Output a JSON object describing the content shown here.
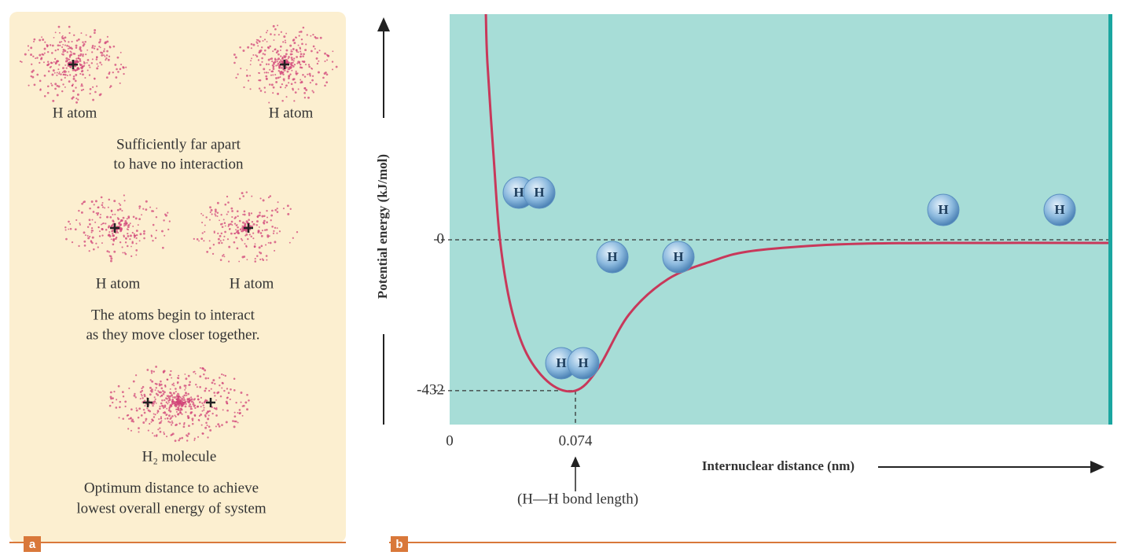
{
  "panel_a": {
    "label": "a",
    "atom_label": "H atom",
    "molecule_label": "H₂ molecule",
    "captions": [
      [
        "Sufficiently far apart",
        "to have no interaction"
      ],
      [
        "The atoms begin to interact",
        "as they move closer together."
      ],
      [
        "Optimum distance to achieve",
        "lowest overall energy of system"
      ]
    ]
  },
  "chart_data": {
    "type": "line",
    "label": "b",
    "ylabel": "Potential energy (kJ/mol)",
    "xlabel": "Internuclear distance (nm)",
    "annotation": "(H—H bond length)",
    "atom_symbol": "H",
    "x": [
      0.0213,
      0.0222,
      0.0259,
      0.0296,
      0.036,
      0.0453,
      0.0592,
      0.074,
      0.087,
      0.1055,
      0.1286,
      0.155,
      0.175,
      0.21,
      0.244,
      0.29,
      0.3876
    ],
    "values": [
      646,
      508,
      236,
      0,
      -191,
      -326,
      -412,
      -432,
      -371,
      -214,
      -112,
      -60,
      -34,
      -18,
      -11,
      -9,
      -9
    ],
    "color": "#c8385a",
    "background": "#a7ddd7",
    "xlim": [
      0,
      0.3876
    ],
    "ylim": [
      -529,
      646
    ],
    "xticks": [
      0,
      0.074
    ],
    "yticks": [
      -432,
      0
    ]
  }
}
